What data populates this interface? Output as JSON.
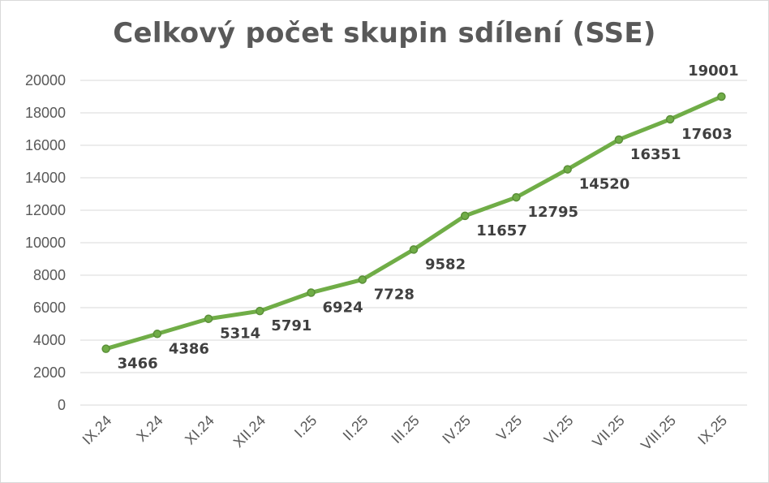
{
  "chart_data": {
    "type": "line",
    "title": "Celkový počet skupin sdílení (SSE)",
    "xlabel": "",
    "ylabel": "",
    "categories": [
      "IX.24",
      "X.24",
      "XI.24",
      "XII.24",
      "I.25",
      "II.25",
      "III.25",
      "IV.25",
      "V.25",
      "VI.25",
      "VII.25",
      "VIII.25",
      "IX.25"
    ],
    "series": [
      {
        "values": [
          3466,
          4386,
          5314,
          5791,
          6924,
          7728,
          9582,
          11657,
          12795,
          14520,
          16351,
          17603,
          19001
        ],
        "color": "#70ad47"
      }
    ],
    "ylim": [
      0,
      20000
    ],
    "yticks": [
      0,
      2000,
      4000,
      6000,
      8000,
      10000,
      12000,
      14000,
      16000,
      18000,
      20000
    ],
    "grid": true,
    "legend": "none",
    "data_labels": true
  }
}
